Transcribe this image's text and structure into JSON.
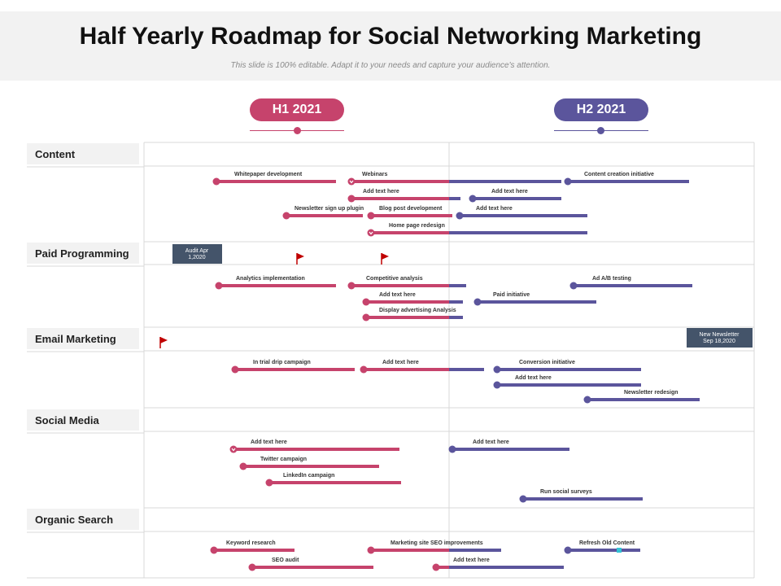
{
  "title": "Half Yearly Roadmap for Social Networking Marketing",
  "subtitle": "This slide is 100% editable. Adapt it to your needs and capture your audience's attention.",
  "periods": [
    {
      "label": "H1 2021",
      "color": "#c6436c"
    },
    {
      "label": "H2 2021",
      "color": "#5b559c"
    }
  ],
  "colors": {
    "h1": "#c6436c",
    "h2": "#5b559c",
    "box": "#44546a",
    "flag": "#c00000",
    "grid": "#d9d9d9",
    "cat_bg": "#f2f2f2"
  },
  "categories": [
    {
      "name": "Content",
      "tasks": [
        {
          "label": "Whitepaper development",
          "color": "h1"
        },
        {
          "label": "Webinars",
          "color": "mixed"
        },
        {
          "label": "Content creation initiative",
          "color": "h2"
        },
        {
          "label": "Add text here",
          "color": "mixed"
        },
        {
          "label": "Add text here",
          "color": "h2"
        },
        {
          "label": "Newsletter sign up plugin",
          "color": "h1"
        },
        {
          "label": "Blog post development",
          "color": "h1"
        },
        {
          "label": "Add text here",
          "color": "h2"
        },
        {
          "label": "Home page redesign",
          "color": "mixed"
        }
      ]
    },
    {
      "name": "Paid Programming",
      "milestones": [
        {
          "label": "Audit Apr 1,2020",
          "icon": "box"
        },
        {
          "icon": "flag-icon"
        },
        {
          "icon": "flag-icon"
        }
      ],
      "tasks": [
        {
          "label": "Analytics implementation",
          "color": "h1"
        },
        {
          "label": "Competitive analysis",
          "color": "mixed"
        },
        {
          "label": "Ad A/B testing",
          "color": "h2"
        },
        {
          "label": "Add text here",
          "color": "mixed"
        },
        {
          "label": "Paid initiative",
          "color": "h2"
        },
        {
          "label": "Display advertising Analysis",
          "color": "mixed"
        }
      ]
    },
    {
      "name": "Email Marketing",
      "milestones": [
        {
          "icon": "flag-icon"
        },
        {
          "label": "New Newsletter Sep 18,2020",
          "icon": "box"
        }
      ],
      "tasks": [
        {
          "label": "In trial drip campaign",
          "color": "h1"
        },
        {
          "label": "Add text here",
          "color": "mixed"
        },
        {
          "label": "Conversion initiative",
          "color": "h2"
        },
        {
          "label": "Add text here",
          "color": "h2"
        },
        {
          "label": "Newsletter redesign",
          "color": "h2"
        }
      ]
    },
    {
      "name": "Social Media",
      "tasks": [
        {
          "label": "Add text here",
          "color": "h1"
        },
        {
          "label": "Add text here",
          "color": "h2"
        },
        {
          "label": "Twitter campaign",
          "color": "h1"
        },
        {
          "label": "LinkedIn campaign",
          "color": "h1"
        },
        {
          "label": "Run social surveys",
          "color": "h2"
        }
      ]
    },
    {
      "name": "Organic Search",
      "tasks": [
        {
          "label": "Keyword research",
          "color": "h1"
        },
        {
          "label": "Marketing site SEO improvements",
          "color": "mixed"
        },
        {
          "label": "Refresh Old Content",
          "color": "h2"
        },
        {
          "label": "SEO audit",
          "color": "h1"
        },
        {
          "label": "Add text here",
          "color": "mixed"
        }
      ]
    }
  ]
}
